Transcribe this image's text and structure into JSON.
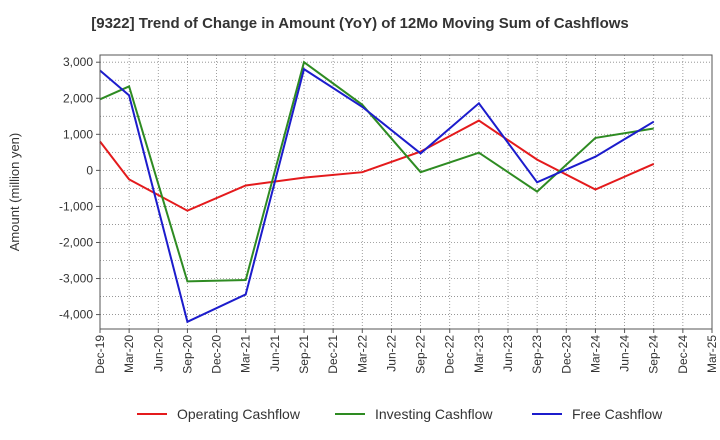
{
  "chart_data": {
    "type": "line",
    "title": "[9322]  Trend of Change in Amount (YoY) of 12Mo Moving Sum of Cashflows",
    "xlabel": "",
    "ylabel": "Amount (million yen)",
    "ylim": [
      -4400,
      3200
    ],
    "yticks": [
      3000,
      2000,
      1000,
      0,
      -1000,
      -2000,
      -3000,
      -4000
    ],
    "ytick_labels": [
      "3,000",
      "2,000",
      "1,000",
      "0",
      "-1,000",
      "-2,000",
      "-3,000",
      "-4,000"
    ],
    "categories": [
      "Dec-19",
      "Mar-20",
      "Jun-20",
      "Sep-20",
      "Dec-20",
      "Mar-21",
      "Jun-21",
      "Sep-21",
      "Dec-21",
      "Mar-22",
      "Jun-22",
      "Sep-22",
      "Dec-22",
      "Mar-23",
      "Jun-23",
      "Sep-23",
      "Dec-23",
      "Mar-24",
      "Jun-24",
      "Sep-24",
      "Dec-24",
      "Mar-25"
    ],
    "grid": true,
    "legend_position": "bottom",
    "series": [
      {
        "name": "Operating Cashflow",
        "color": "#e41a1c",
        "values": [
          800,
          -250,
          null,
          -1120,
          null,
          -420,
          null,
          -200,
          null,
          -50,
          null,
          520,
          null,
          1380,
          null,
          300,
          null,
          -530,
          null,
          180,
          null,
          null
        ]
      },
      {
        "name": "Investing Cashflow",
        "color": "#2e8b22",
        "values": [
          1970,
          2330,
          null,
          -3080,
          null,
          -3040,
          null,
          3000,
          null,
          1820,
          null,
          -50,
          null,
          490,
          null,
          -590,
          null,
          900,
          null,
          1160,
          null,
          null
        ]
      },
      {
        "name": "Free Cashflow",
        "color": "#1c1ccc",
        "values": [
          2770,
          2080,
          null,
          -4200,
          null,
          -3440,
          null,
          2810,
          null,
          1760,
          null,
          470,
          null,
          1860,
          null,
          -330,
          null,
          380,
          null,
          1350,
          null,
          null
        ]
      }
    ]
  }
}
